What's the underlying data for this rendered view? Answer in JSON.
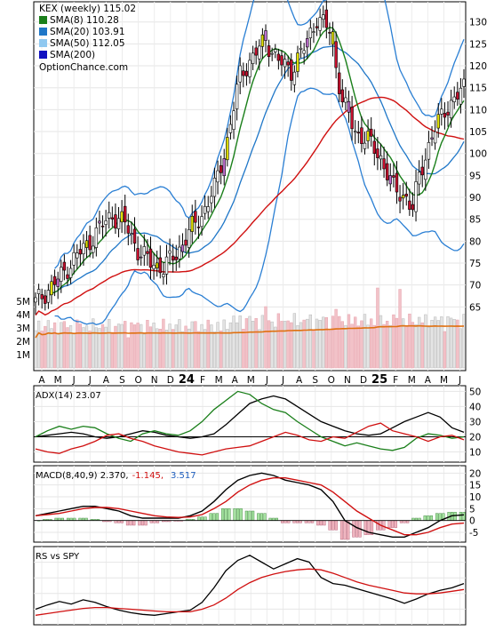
{
  "chart_data": [
    {
      "type": "candlestick",
      "panel": "price",
      "title": "KEX (weekly) 115.02",
      "watermark": "OptionChance.com",
      "legend": [
        {
          "label": "SMA(8) 110.28",
          "color": "#1a7f1a"
        },
        {
          "label": "SMA(20) 103.91",
          "color": "#1f77c8"
        },
        {
          "label": "SMA(50) 112.05",
          "color": "#8fc8f0"
        },
        {
          "label": "SMA(200)",
          "color": "#1010c0"
        }
      ],
      "legend_position": "top-left",
      "y_ticks": [
        65,
        70,
        75,
        80,
        85,
        90,
        95,
        100,
        105,
        110,
        115,
        120,
        125,
        130
      ],
      "ylim": [
        60,
        134
      ],
      "x_labels": [
        "A",
        "M",
        "J",
        "J",
        "A",
        "S",
        "O",
        "N",
        "D",
        "24",
        "F",
        "M",
        "A",
        "M",
        "J",
        "J",
        "A",
        "S",
        "O",
        "N",
        "D",
        "25",
        "F",
        "M",
        "A",
        "M",
        "J"
      ],
      "x_label_bold": [
        "24",
        "25"
      ],
      "close_path": [
        [
          0,
          66
        ],
        [
          4,
          69
        ],
        [
          8,
          72
        ],
        [
          12,
          76
        ],
        [
          16,
          79
        ],
        [
          20,
          83
        ],
        [
          24,
          86
        ],
        [
          28,
          84
        ],
        [
          32,
          78
        ],
        [
          36,
          75
        ],
        [
          40,
          74
        ],
        [
          44,
          77
        ],
        [
          48,
          82
        ],
        [
          52,
          86
        ],
        [
          56,
          92
        ],
        [
          60,
          103
        ],
        [
          64,
          118
        ],
        [
          68,
          122
        ],
        [
          72,
          126
        ],
        [
          76,
          121
        ],
        [
          80,
          119
        ],
        [
          84,
          124
        ],
        [
          88,
          131
        ],
        [
          92,
          128
        ],
        [
          96,
          112
        ],
        [
          100,
          105
        ],
        [
          104,
          103
        ],
        [
          108,
          99
        ],
        [
          112,
          92
        ],
        [
          116,
          90
        ],
        [
          118,
          87
        ],
        [
          120,
          95
        ],
        [
          124,
          104
        ],
        [
          128,
          110
        ],
        [
          132,
          113
        ],
        [
          134,
          115
        ]
      ],
      "volume_ticks": [
        "1M",
        "2M",
        "3M",
        "4M",
        "5M"
      ]
    },
    {
      "type": "line",
      "panel": "adx",
      "label": "ADX(14) 23.07",
      "y_ticks": [
        10,
        20,
        30,
        40,
        50
      ],
      "ylim": [
        5,
        52
      ],
      "series": [
        {
          "name": "ADX",
          "color": "#000000",
          "values": [
            20,
            21,
            22,
            23,
            22,
            20,
            19,
            20,
            22,
            24,
            23,
            21,
            20,
            19,
            20,
            22,
            28,
            35,
            42,
            45,
            47,
            45,
            40,
            35,
            30,
            27,
            24,
            22,
            21,
            22,
            26,
            30,
            33,
            36,
            33,
            26,
            23
          ]
        },
        {
          "name": "+DI",
          "color": "#1a7f1a",
          "values": [
            20,
            24,
            27,
            25,
            27,
            26,
            22,
            19,
            17,
            22,
            24,
            22,
            21,
            24,
            30,
            38,
            44,
            50,
            48,
            42,
            38,
            36,
            30,
            25,
            20,
            17,
            14,
            16,
            14,
            12,
            11,
            13,
            19,
            22,
            21,
            19,
            20
          ]
        },
        {
          "name": "-DI",
          "color": "#d01010",
          "values": [
            12,
            10,
            9,
            12,
            14,
            17,
            21,
            22,
            19,
            17,
            14,
            12,
            10,
            9,
            8,
            10,
            12,
            13,
            14,
            17,
            20,
            23,
            21,
            18,
            17,
            20,
            19,
            23,
            27,
            29,
            24,
            22,
            20,
            17,
            20,
            21,
            18
          ]
        }
      ],
      "reference_line": 20
    },
    {
      "type": "line+histogram",
      "panel": "macd",
      "label": "MACD(8,40,9) 2.370,",
      "signal_label": "-1.145,",
      "hist_label": "3.517",
      "y_ticks": [
        -5,
        0,
        5,
        10,
        15,
        20
      ],
      "ylim": [
        -8,
        22
      ],
      "series": [
        {
          "name": "MACD",
          "color": "#000000",
          "values": [
            2,
            3,
            4,
            5,
            6,
            6,
            5,
            4,
            2,
            1,
            1,
            1,
            1,
            2,
            4,
            8,
            13,
            17,
            19,
            20,
            19,
            17,
            16,
            15,
            13,
            8,
            0,
            -3,
            -5,
            -6,
            -7,
            -7,
            -5,
            -3,
            0,
            2,
            2.4
          ]
        },
        {
          "name": "Signal",
          "color": "#d01010",
          "values": [
            2,
            2.5,
            3,
            4,
            5,
            5.5,
            5.5,
            5,
            4,
            3,
            2,
            1.5,
            1.3,
            1.5,
            2.5,
            5,
            8,
            12,
            15,
            17,
            18,
            18,
            17,
            16,
            15,
            12,
            8,
            4,
            1,
            -2,
            -4,
            -6,
            -6,
            -5,
            -3,
            -1.5,
            -1.1
          ]
        },
        {
          "name": "Histogram",
          "color": "#a6e3a1",
          "values": [
            0,
            0.5,
            1,
            1,
            1,
            0.5,
            -0.5,
            -1,
            -2,
            -2,
            -1,
            -0.5,
            -0.3,
            0.5,
            1.5,
            3,
            5,
            5,
            4,
            3,
            1,
            -1,
            -1,
            -1,
            -2,
            -4,
            -8,
            -7,
            -6,
            -4,
            -3,
            -1,
            1,
            2,
            3,
            3.5,
            3.5
          ]
        }
      ]
    },
    {
      "type": "line",
      "panel": "rs",
      "label": "RS vs SPY",
      "series": [
        {
          "name": "RS",
          "color": "#000000",
          "values": [
            0.25,
            0.3,
            0.34,
            0.31,
            0.36,
            0.33,
            0.28,
            0.24,
            0.21,
            0.19,
            0.18,
            0.2,
            0.22,
            0.24,
            0.33,
            0.5,
            0.7,
            0.82,
            0.88,
            0.8,
            0.72,
            0.78,
            0.84,
            0.8,
            0.62,
            0.55,
            0.53,
            0.49,
            0.45,
            0.41,
            0.37,
            0.32,
            0.37,
            0.43,
            0.47,
            0.5,
            0.55
          ]
        },
        {
          "name": "MA",
          "color": "#d01010",
          "values": [
            0.18,
            0.2,
            0.22,
            0.24,
            0.26,
            0.27,
            0.27,
            0.26,
            0.25,
            0.24,
            0.23,
            0.22,
            0.22,
            0.22,
            0.25,
            0.3,
            0.38,
            0.48,
            0.56,
            0.62,
            0.66,
            0.69,
            0.71,
            0.72,
            0.71,
            0.67,
            0.62,
            0.57,
            0.53,
            0.5,
            0.47,
            0.44,
            0.43,
            0.43,
            0.44,
            0.46,
            0.48
          ]
        }
      ]
    }
  ]
}
